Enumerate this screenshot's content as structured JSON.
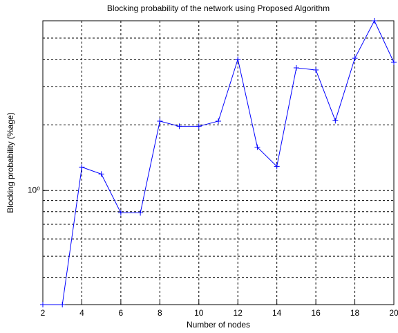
{
  "chart_data": {
    "type": "line",
    "title": "Blocking probability of the network using Proposed Algorithm",
    "xlabel": "Number of nodes",
    "ylabel": "Blocking probability (%age)",
    "x": [
      2,
      3,
      4,
      5,
      6,
      7,
      8,
      9,
      10,
      11,
      12,
      13,
      14,
      15,
      16,
      17,
      18,
      19,
      20
    ],
    "series": [
      {
        "color": "#0000ff",
        "values": [
          0.3,
          0.3,
          1.28,
          1.19,
          0.79,
          0.79,
          2.08,
          1.97,
          1.97,
          2.08,
          4.0,
          1.58,
          1.29,
          3.65,
          3.57,
          2.09,
          4.04,
          6.0,
          3.87
        ]
      }
    ],
    "xlim": [
      2,
      20
    ],
    "xticks": [
      2,
      4,
      6,
      8,
      10,
      12,
      14,
      16,
      18,
      20
    ],
    "ylim": [
      0.3,
      6
    ],
    "yscale": "log",
    "yticks": [
      {
        "value": 1,
        "label": "10⁰"
      }
    ],
    "grid": true,
    "minor_grid": true,
    "marker": "+"
  }
}
